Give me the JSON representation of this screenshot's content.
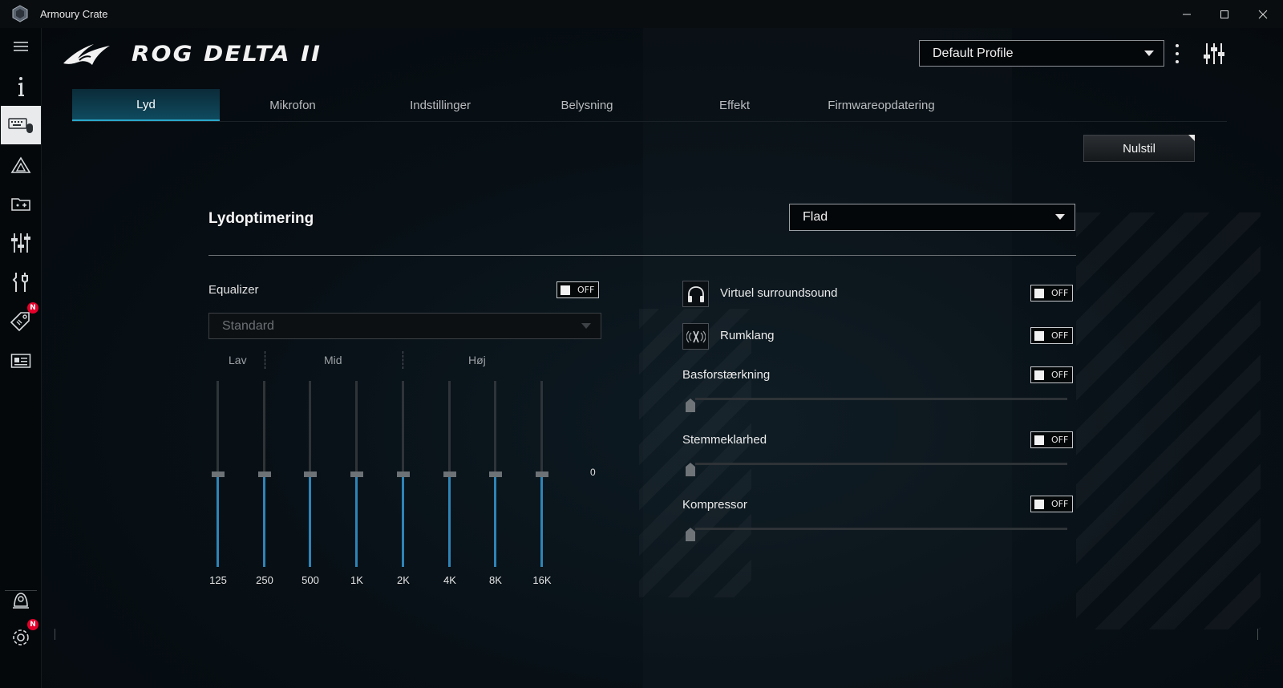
{
  "titlebar": {
    "app_title": "Armoury Crate"
  },
  "header": {
    "device_name": "ROG DELTA II",
    "profile": "Default Profile"
  },
  "tabs": [
    "Lyd",
    "Mikrofon",
    "Indstillinger",
    "Belysning",
    "Effekt",
    "Firmwareopdatering"
  ],
  "active_tab": "Lyd",
  "reset_label": "Nulstil",
  "sound": {
    "title": "Lydoptimering",
    "preset": "Flad",
    "equalizer": {
      "label": "Equalizer",
      "toggle": "OFF",
      "preset": "Standard",
      "bands": [
        "Lav",
        "Mid",
        "Høj"
      ],
      "frequencies": [
        "125",
        "250",
        "500",
        "1K",
        "2K",
        "4K",
        "8K",
        "16K"
      ],
      "value_label": "0",
      "levels": [
        0,
        0,
        0,
        0,
        0,
        0,
        0,
        0
      ]
    },
    "options": [
      {
        "label": "Virtuel surroundsound",
        "toggle": "OFF",
        "icon": "headphones-icon"
      },
      {
        "label": "Rumklang",
        "toggle": "OFF",
        "icon": "reverb-icon"
      },
      {
        "label": "Basforstærkning",
        "toggle": "OFF",
        "level": 0
      },
      {
        "label": "Stemmeklarhed",
        "toggle": "OFF",
        "level": 0
      },
      {
        "label": "Kompressor",
        "toggle": "OFF",
        "level": 0
      }
    ]
  },
  "badges": {
    "deals": "N",
    "settings": "N"
  },
  "colors": {
    "accent": "#2aa7c9",
    "eq_fill": "#2e84b7",
    "badge": "#e4002b"
  }
}
